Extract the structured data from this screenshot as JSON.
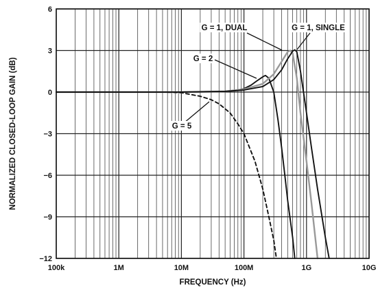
{
  "chart_data": {
    "type": "line",
    "xlabel": "FREQUENCY (Hz)",
    "ylabel": "NORMALIZED CLOSED-LOOP GAIN (dB)",
    "x_scale": "log",
    "xlim": [
      100000,
      10000000000
    ],
    "ylim": [
      -12,
      6
    ],
    "x_ticks": [
      {
        "value": 100000,
        "label": "100k"
      },
      {
        "value": 1000000,
        "label": "1M"
      },
      {
        "value": 10000000,
        "label": "10M"
      },
      {
        "value": 100000000,
        "label": "100M"
      },
      {
        "value": 1000000000,
        "label": "1G"
      },
      {
        "value": 10000000000,
        "label": "10G"
      }
    ],
    "y_ticks": [
      {
        "value": 6,
        "label": "6"
      },
      {
        "value": 3,
        "label": "3"
      },
      {
        "value": 0,
        "label": "0"
      },
      {
        "value": -3,
        "label": "−3"
      },
      {
        "value": -6,
        "label": "−6"
      },
      {
        "value": -9,
        "label": "−9"
      },
      {
        "value": -12,
        "label": "−12"
      }
    ],
    "grid": true,
    "series": [
      {
        "key": "g5",
        "color": "#111111",
        "style": "dashed",
        "points": [
          [
            100000,
            0
          ],
          [
            1000000,
            0
          ],
          [
            5000000,
            0
          ],
          [
            10000000,
            -0.05
          ],
          [
            20000000,
            -0.3
          ],
          [
            30000000,
            -0.55
          ],
          [
            40000000,
            -0.85
          ],
          [
            60000000,
            -1.5
          ],
          [
            80000000,
            -2.3
          ],
          [
            100000000,
            -3.0
          ],
          [
            150000000,
            -5.0
          ],
          [
            200000000,
            -7.0
          ],
          [
            250000000,
            -9.0
          ],
          [
            300000000,
            -10.7
          ],
          [
            330000000,
            -12.0
          ]
        ]
      },
      {
        "key": "g2",
        "color": "#111111",
        "style": "solid",
        "points": [
          [
            100000,
            0
          ],
          [
            10000000,
            0
          ],
          [
            50000000,
            0.05
          ],
          [
            80000000,
            0.15
          ],
          [
            100000000,
            0.25
          ],
          [
            130000000,
            0.5
          ],
          [
            160000000,
            0.8
          ],
          [
            200000000,
            1.1
          ],
          [
            220000000,
            1.2
          ],
          [
            250000000,
            1.0
          ],
          [
            300000000,
            0
          ],
          [
            350000000,
            -2
          ],
          [
            400000000,
            -4
          ],
          [
            450000000,
            -6
          ],
          [
            500000000,
            -7.8
          ],
          [
            600000000,
            -10.5
          ],
          [
            650000000,
            -12.0
          ]
        ]
      },
      {
        "key": "g1dual",
        "color": "#999999",
        "style": "solid",
        "points": [
          [
            100000,
            0
          ],
          [
            10000000,
            0
          ],
          [
            50000000,
            0.05
          ],
          [
            100000000,
            0.2
          ],
          [
            200000000,
            0.6
          ],
          [
            300000000,
            1.3
          ],
          [
            400000000,
            2.2
          ],
          [
            500000000,
            2.9
          ],
          [
            550000000,
            3.0
          ],
          [
            600000000,
            2.8
          ],
          [
            700000000,
            1.0
          ],
          [
            800000000,
            -1.5
          ],
          [
            1000000000,
            -5.0
          ],
          [
            1200000000,
            -8.0
          ],
          [
            1500000000,
            -12.0
          ]
        ]
      },
      {
        "key": "g1single",
        "color": "#111111",
        "style": "solid",
        "points": [
          [
            100000,
            0
          ],
          [
            10000000,
            0
          ],
          [
            50000000,
            0.05
          ],
          [
            100000000,
            0.15
          ],
          [
            200000000,
            0.4
          ],
          [
            300000000,
            0.9
          ],
          [
            400000000,
            1.6
          ],
          [
            500000000,
            2.4
          ],
          [
            600000000,
            2.95
          ],
          [
            650000000,
            3.05
          ],
          [
            700000000,
            2.9
          ],
          [
            800000000,
            1.5
          ],
          [
            1000000000,
            -1.5
          ],
          [
            1200000000,
            -4.0
          ],
          [
            1500000000,
            -7.0
          ],
          [
            2000000000,
            -10.5
          ],
          [
            2300000000,
            -12.0
          ]
        ]
      }
    ],
    "annotations": [
      {
        "text": "G = 1, DUAL"
      },
      {
        "text": "G = 1, SINGLE"
      },
      {
        "text": "G = 2"
      },
      {
        "text": "G = 5"
      }
    ]
  }
}
